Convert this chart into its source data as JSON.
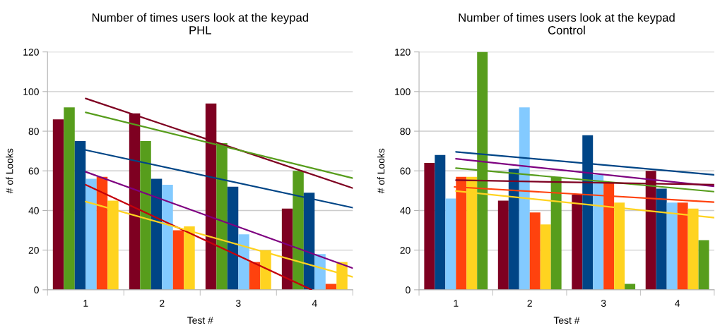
{
  "chart_data": [
    {
      "type": "bar",
      "title": "Number of times users look at the keypad",
      "subtitle": "PHL",
      "xlabel": "Test #",
      "ylabel": "# of Looks",
      "x": [
        1,
        2,
        3,
        4
      ],
      "xlim": [
        0.5,
        4.5
      ],
      "xticks": [
        {
          "value": 0.5,
          "label": null
        },
        {
          "value": 1,
          "label": "1"
        },
        {
          "value": 1.5,
          "label": null
        },
        {
          "value": 2,
          "label": "2"
        },
        {
          "value": 2.5,
          "label": null
        },
        {
          "value": 3,
          "label": "3"
        },
        {
          "value": 3.5,
          "label": null
        },
        {
          "value": 4,
          "label": "4"
        },
        {
          "value": 4.5,
          "label": null
        }
      ],
      "ylim": [
        0,
        120
      ],
      "yticks": [
        0,
        20,
        40,
        60,
        80,
        100,
        120
      ],
      "grid": "y",
      "series": [
        {
          "color": "#7e0021",
          "values": [
            86,
            89,
            94,
            41
          ]
        },
        {
          "color": "#579d1c",
          "values": [
            92,
            75,
            74,
            60
          ]
        },
        {
          "color": "#004586",
          "values": [
            75,
            56,
            52,
            49
          ]
        },
        {
          "color": "#83caff",
          "values": [
            56,
            53,
            28,
            18
          ]
        },
        {
          "color": "#ff420e",
          "values": [
            57,
            30,
            14,
            3
          ]
        },
        {
          "color": "#ffd320",
          "values": [
            45,
            32,
            20,
            14
          ]
        },
        {
          "type": "line",
          "color": "#7e0021",
          "x": [
            1,
            4.5
          ],
          "values": [
            96.5,
            51.3
          ]
        },
        {
          "type": "line",
          "color": "#579d1c",
          "x": [
            1,
            4.5
          ],
          "values": [
            89.5,
            56.3
          ]
        },
        {
          "type": "line",
          "color": "#004586",
          "x": [
            1,
            4.5
          ],
          "values": [
            70.5,
            41.4
          ]
        },
        {
          "type": "line",
          "color": "#7e0080",
          "x": [
            1,
            4.5
          ],
          "values": [
            59.5,
            10.9
          ]
        },
        {
          "type": "line",
          "color": "#c5000b",
          "x": [
            1,
            3.96
          ],
          "values": [
            53,
            0
          ]
        },
        {
          "type": "line",
          "color": "#ffd320",
          "x": [
            1,
            4.5
          ],
          "values": [
            44.5,
            6.5
          ]
        }
      ]
    },
    {
      "type": "bar",
      "title": "Number of times users look at the keypad",
      "subtitle": "Control",
      "xlabel": "Test #",
      "ylabel": "# of Looks",
      "x": [
        1,
        2,
        3,
        4
      ],
      "xlim": [
        0.5,
        4.5
      ],
      "xticks": [
        {
          "value": 0.5,
          "label": null
        },
        {
          "value": 1,
          "label": "1"
        },
        {
          "value": 1.5,
          "label": null
        },
        {
          "value": 2,
          "label": "2"
        },
        {
          "value": 2.5,
          "label": null
        },
        {
          "value": 3,
          "label": "3"
        },
        {
          "value": 3.5,
          "label": null
        },
        {
          "value": 4,
          "label": "4"
        },
        {
          "value": 4.5,
          "label": null
        }
      ],
      "ylim": [
        0,
        120
      ],
      "yticks": [
        0,
        20,
        40,
        60,
        80,
        100,
        120
      ],
      "grid": "y",
      "series": [
        {
          "color": "#7e0021",
          "values": [
            64,
            45,
            48,
            60
          ]
        },
        {
          "color": "#004586",
          "values": [
            68,
            61,
            78,
            51
          ]
        },
        {
          "color": "#83caff",
          "values": [
            46,
            92,
            58,
            44
          ]
        },
        {
          "color": "#ff420e",
          "values": [
            57,
            39,
            54,
            44
          ]
        },
        {
          "color": "#ffd320",
          "values": [
            57,
            33,
            44,
            41
          ]
        },
        {
          "color": "#579d1c",
          "values": [
            120,
            57,
            3,
            25
          ]
        },
        {
          "type": "line",
          "color": "#004586",
          "x": [
            1,
            4.5
          ],
          "values": [
            69.6,
            58.0
          ]
        },
        {
          "type": "line",
          "color": "#7e0080",
          "x": [
            1,
            4.5
          ],
          "values": [
            66.1,
            52.2
          ]
        },
        {
          "type": "line",
          "color": "#579d1c",
          "x": [
            1,
            4.5
          ],
          "values": [
            61.4,
            49.5
          ]
        },
        {
          "type": "line",
          "color": "#7e0021",
          "x": [
            1,
            4.5
          ],
          "values": [
            55.3,
            53.0
          ]
        },
        {
          "type": "line",
          "color": "#ff420e",
          "x": [
            0.98,
            4.5
          ],
          "values": [
            51.9,
            44.2
          ]
        },
        {
          "type": "line",
          "color": "#ffd320",
          "x": [
            1,
            4.5
          ],
          "values": [
            49.8,
            36.4
          ]
        }
      ]
    }
  ]
}
